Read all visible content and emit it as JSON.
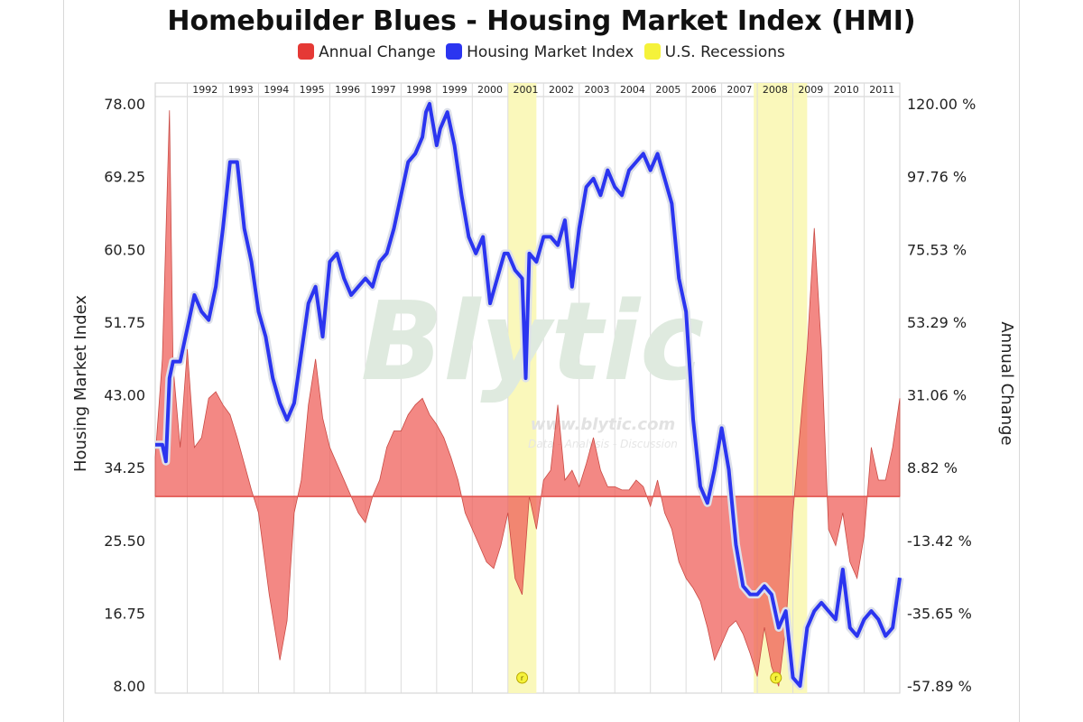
{
  "chart_data": {
    "type": "line",
    "title": "Homebuilder Blues - Housing Market Index (HMI)",
    "watermark": {
      "brand": "Blytic",
      "url": "www.blytic.com",
      "tagline": "Data - Analysis - Discussion"
    },
    "legend": {
      "placement": "top-center",
      "items": [
        {
          "label": "Annual Change",
          "color": "#e53935"
        },
        {
          "label": "Housing Market Index",
          "color": "#2b35f0"
        },
        {
          "label": "U.S. Recessions",
          "color": "#f5f23a"
        }
      ]
    },
    "ylabel": "Housing Market Index",
    "y2label": "Annual Change",
    "ylim": [
      8,
      78
    ],
    "y2lim": [
      -57.89,
      120
    ],
    "yticks": [
      "78.00",
      "69.25",
      "60.50",
      "51.75",
      "43.00",
      "34.25",
      "25.50",
      "16.75",
      "8.00"
    ],
    "y2ticks": [
      "120.00 %",
      "97.76 %",
      "75.53 %",
      "53.29 %",
      "31.06 %",
      "8.82 %",
      "-13.42 %",
      "-35.65 %",
      "-57.89 %"
    ],
    "xlim": [
      1991.1,
      2012.0
    ],
    "years": [
      "1992",
      "1993",
      "1994",
      "1995",
      "1996",
      "1997",
      "1998",
      "1999",
      "2000",
      "2001",
      "2002",
      "2003",
      "2004",
      "2005",
      "2006",
      "2007",
      "2008",
      "2009",
      "2010",
      "2011"
    ],
    "grid": true,
    "recessions": [
      [
        2001.0,
        2001.8
      ],
      [
        2007.9,
        2009.4
      ]
    ],
    "recession_marker": "r",
    "series": [
      {
        "name": "Housing Market Index",
        "color": "#2b35f0",
        "x": [
          1991.1,
          1991.3,
          1991.4,
          1991.5,
          1991.6,
          1991.8,
          1992.0,
          1992.2,
          1992.4,
          1992.6,
          1992.8,
          1993.0,
          1993.2,
          1993.4,
          1993.6,
          1993.8,
          1994.0,
          1994.2,
          1994.4,
          1994.6,
          1994.8,
          1995.0,
          1995.2,
          1995.4,
          1995.6,
          1995.8,
          1996.0,
          1996.2,
          1996.4,
          1996.6,
          1996.8,
          1997.0,
          1997.2,
          1997.4,
          1997.6,
          1997.8,
          1998.0,
          1998.2,
          1998.4,
          1998.6,
          1998.7,
          1998.8,
          1999.0,
          1999.1,
          1999.3,
          1999.5,
          1999.7,
          1999.9,
          2000.1,
          2000.3,
          2000.5,
          2000.7,
          2000.9,
          2001.0,
          2001.2,
          2001.4,
          2001.5,
          2001.6,
          2001.8,
          2002.0,
          2002.2,
          2002.4,
          2002.6,
          2002.8,
          2003.0,
          2003.2,
          2003.4,
          2003.6,
          2003.8,
          2004.0,
          2004.2,
          2004.4,
          2004.6,
          2004.8,
          2005.0,
          2005.2,
          2005.4,
          2005.6,
          2005.8,
          2006.0,
          2006.2,
          2006.4,
          2006.6,
          2006.8,
          2007.0,
          2007.2,
          2007.4,
          2007.6,
          2007.8,
          2008.0,
          2008.2,
          2008.4,
          2008.6,
          2008.8,
          2009.0,
          2009.2,
          2009.4,
          2009.6,
          2009.8,
          2010.0,
          2010.2,
          2010.4,
          2010.6,
          2010.8,
          2011.0,
          2011.2,
          2011.4,
          2011.6,
          2011.8,
          2012.0
        ],
        "values": [
          37,
          37,
          35,
          45,
          47,
          47,
          51,
          55,
          53,
          52,
          56,
          63,
          71,
          71,
          63,
          59,
          53,
          50,
          45,
          42,
          40,
          42,
          48,
          54,
          56,
          50,
          59,
          60,
          57,
          55,
          56,
          57,
          56,
          59,
          60,
          63,
          67,
          71,
          72,
          74,
          77,
          78,
          73,
          75,
          77,
          73,
          67,
          62,
          60,
          62,
          54,
          57,
          60,
          60,
          58,
          57,
          45,
          60,
          59,
          62,
          62,
          61,
          64,
          56,
          63,
          68,
          69,
          67,
          70,
          68,
          67,
          70,
          71,
          72,
          70,
          72,
          69,
          66,
          57,
          53,
          40,
          32,
          30,
          34,
          39,
          34,
          25,
          20,
          19,
          19,
          20,
          19,
          15,
          17,
          9,
          8,
          15,
          17,
          18,
          17,
          16,
          22,
          15,
          14,
          16,
          17,
          16,
          14,
          15,
          21
        ]
      },
      {
        "name": "Annual Change",
        "color": "#ee5a54",
        "axis": "right",
        "x": [
          1991.1,
          1991.3,
          1991.5,
          1991.6,
          1991.8,
          1992.0,
          1992.2,
          1992.4,
          1992.6,
          1992.8,
          1993.0,
          1993.2,
          1993.4,
          1993.6,
          1993.8,
          1994.0,
          1994.3,
          1994.6,
          1994.8,
          1995.0,
          1995.2,
          1995.4,
          1995.6,
          1995.8,
          1996.0,
          1996.2,
          1996.4,
          1996.6,
          1996.8,
          1997.0,
          1997.2,
          1997.4,
          1997.6,
          1997.8,
          1998.0,
          1998.2,
          1998.4,
          1998.6,
          1998.8,
          1999.0,
          1999.2,
          1999.4,
          1999.6,
          1999.8,
          2000.0,
          2000.2,
          2000.4,
          2000.6,
          2000.8,
          2001.0,
          2001.2,
          2001.4,
          2001.6,
          2001.8,
          2002.0,
          2002.2,
          2002.4,
          2002.6,
          2002.8,
          2003.0,
          2003.2,
          2003.4,
          2003.6,
          2003.8,
          2004.0,
          2004.2,
          2004.4,
          2004.6,
          2004.8,
          2005.0,
          2005.2,
          2005.4,
          2005.6,
          2005.8,
          2006.0,
          2006.2,
          2006.4,
          2006.6,
          2006.8,
          2007.0,
          2007.2,
          2007.4,
          2007.6,
          2007.8,
          2008.0,
          2008.2,
          2008.4,
          2008.6,
          2008.8,
          2009.0,
          2009.2,
          2009.4,
          2009.6,
          2009.8,
          2010.0,
          2010.2,
          2010.4,
          2010.6,
          2010.8,
          2011.0,
          2011.2,
          2011.4,
          2011.6,
          2011.8,
          2012.0
        ],
        "values": [
          12,
          42,
          118,
          40,
          15,
          45,
          15,
          18,
          30,
          32,
          28,
          25,
          18,
          10,
          2,
          -5,
          -30,
          -50,
          -38,
          -5,
          5,
          28,
          42,
          24,
          15,
          10,
          5,
          0,
          -5,
          -8,
          0,
          5,
          15,
          20,
          20,
          25,
          28,
          30,
          25,
          22,
          18,
          12,
          5,
          -5,
          -10,
          -15,
          -20,
          -22,
          -15,
          -5,
          -25,
          -30,
          0,
          -10,
          5,
          8,
          28,
          5,
          8,
          3,
          10,
          18,
          8,
          3,
          3,
          2,
          2,
          5,
          3,
          -3,
          5,
          -5,
          -10,
          -20,
          -25,
          -28,
          -32,
          -40,
          -50,
          -45,
          -40,
          -38,
          -42,
          -48,
          -55,
          -40,
          -52,
          -58,
          -40,
          -5,
          20,
          45,
          82,
          45,
          -10,
          -15,
          -5,
          -20,
          -25,
          -12,
          15,
          5,
          5,
          15,
          30
        ]
      }
    ]
  }
}
